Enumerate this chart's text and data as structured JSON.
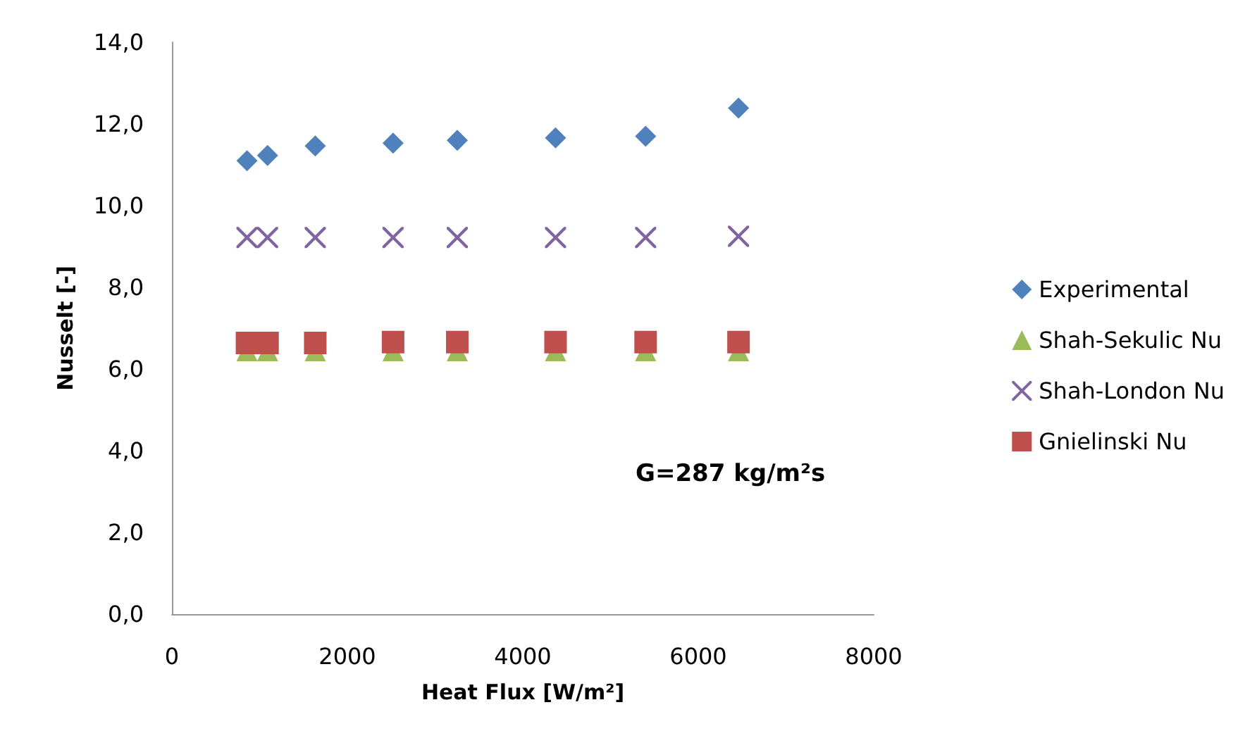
{
  "chart_data": {
    "type": "scatter",
    "xlabel": "Heat Flux [W/m²]",
    "ylabel": "Nusselt [-]",
    "x": [
      856,
      1090,
      1634,
      2521,
      3253,
      4373,
      5400,
      6459
    ],
    "xlim": [
      0,
      8000
    ],
    "xticks": [
      0,
      2000,
      4000,
      6000,
      8000
    ],
    "ylim": [
      0,
      14
    ],
    "yticks": [
      {
        "value": 0,
        "label": "0,0"
      },
      {
        "value": 2,
        "label": "2,0"
      },
      {
        "value": 4,
        "label": "4,0"
      },
      {
        "value": 6,
        "label": "6,0"
      },
      {
        "value": 8,
        "label": "8,0"
      },
      {
        "value": 10,
        "label": "10,0"
      },
      {
        "value": 12,
        "label": "12,0"
      },
      {
        "value": 14,
        "label": "14,0"
      }
    ],
    "series": [
      {
        "name": "Experimental",
        "color": "#4f81bd",
        "marker": "diamond",
        "values": [
          11.1,
          11.23,
          11.46,
          11.53,
          11.6,
          11.66,
          11.7,
          12.39
        ]
      },
      {
        "name": "Shah-Sekulic Nu",
        "color": "#9bbb59",
        "marker": "triangle",
        "values": [
          6.45,
          6.45,
          6.45,
          6.45,
          6.45,
          6.45,
          6.45,
          6.45
        ]
      },
      {
        "name": "Shah-London Nu",
        "color": "#8064a2",
        "marker": "cross",
        "values": [
          9.22,
          9.22,
          9.22,
          9.22,
          9.22,
          9.22,
          9.22,
          9.25
        ]
      },
      {
        "name": "Gnielinski Nu",
        "color": "#c0504d",
        "marker": "square",
        "values": [
          6.64,
          6.64,
          6.64,
          6.66,
          6.66,
          6.66,
          6.66,
          6.66
        ]
      }
    ],
    "annotations": [
      "G=287 kg/m²s"
    ],
    "legend": "right",
    "grid": false
  }
}
